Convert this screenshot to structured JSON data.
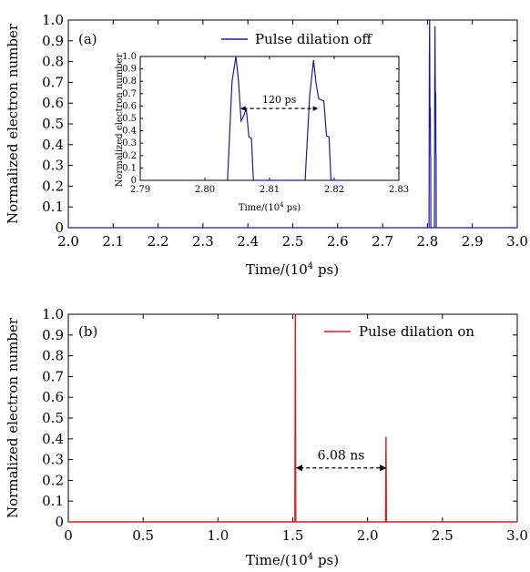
{
  "chart_data": [
    {
      "type": "line",
      "panel_label": "(a)",
      "xlabel_main": "Time/(10",
      "xlabel_sup": "4",
      "xlabel_tail": " ps)",
      "ylabel": "Normalized electron number",
      "xlim": [
        2.0,
        3.0
      ],
      "ylim": [
        0,
        1.0
      ],
      "xticks": [
        "2.0",
        "2.1",
        "2.2",
        "2.3",
        "2.4",
        "2.5",
        "2.6",
        "2.7",
        "2.8",
        "2.9",
        "3.0"
      ],
      "yticks": [
        "0",
        "0.1",
        "0.2",
        "0.3",
        "0.4",
        "0.5",
        "0.6",
        "0.7",
        "0.8",
        "0.9",
        "1.0"
      ],
      "legend": "Pulse dilation off",
      "legend_position": "top-right",
      "color": "#1a1aa6",
      "x": [
        2.0,
        2.8035,
        2.8042,
        2.8048,
        2.8052,
        2.8056,
        2.806,
        2.8064,
        2.8068,
        2.8072,
        2.8075,
        2.809,
        2.8155,
        2.8162,
        2.8168,
        2.8172,
        2.8176,
        2.818,
        2.8184,
        2.8188,
        2.8192,
        2.8195,
        2.821,
        3.0
      ],
      "y": [
        0,
        0,
        0.8,
        1.0,
        0.8,
        0.48,
        0.52,
        0.58,
        0.35,
        0.34,
        0.0,
        0.0,
        0.0,
        0.68,
        0.97,
        0.78,
        0.66,
        0.65,
        0.64,
        0.36,
        0.35,
        0.0,
        0.0,
        0
      ],
      "inset": {
        "xlim": [
          2.79,
          2.83
        ],
        "ylim": [
          0,
          1.0
        ],
        "xticks": [
          "2.79",
          "2.80",
          "2.81",
          "2.82",
          "2.83"
        ],
        "yticks": [
          "0",
          "0.1",
          "0.2",
          "0.3",
          "0.4",
          "0.5",
          "0.6",
          "0.7",
          "0.8",
          "0.9",
          "1.0"
        ],
        "xlabel_main": "Time/(10",
        "xlabel_sup": "4",
        "xlabel_tail": " ps)",
        "ylabel": "Normalized electron number",
        "annotation": "120 ps",
        "arrow_from_x": 2.8055,
        "arrow_to_x": 2.8175,
        "arrow_y": 0.58
      }
    },
    {
      "type": "line",
      "panel_label": "(b)",
      "xlabel_main": "Time/(10",
      "xlabel_sup": "4",
      "xlabel_tail": " ps)",
      "ylabel": "Normalized electron number",
      "xlim": [
        0,
        3.0
      ],
      "ylim": [
        0,
        1.0
      ],
      "xticks": [
        "0",
        "0.5",
        "1.0",
        "1.5",
        "2.0",
        "2.5",
        "3.0"
      ],
      "yticks": [
        "0",
        "0.1",
        "0.2",
        "0.3",
        "0.4",
        "0.5",
        "0.6",
        "0.7",
        "0.8",
        "0.9",
        "1.0"
      ],
      "legend": "Pulse dilation on",
      "legend_position": "top-right",
      "color": "#e41a1c",
      "x": [
        0,
        1.514,
        1.517,
        1.52,
        1.526,
        2.12,
        2.123,
        2.126,
        2.13,
        3.0
      ],
      "y": [
        0,
        0,
        1.0,
        0.0,
        0,
        0,
        0.41,
        0.0,
        0,
        0
      ],
      "annotation": "6.08 ns",
      "arrow_from_x": 1.52,
      "arrow_to_x": 2.126,
      "arrow_y": 0.26
    }
  ]
}
